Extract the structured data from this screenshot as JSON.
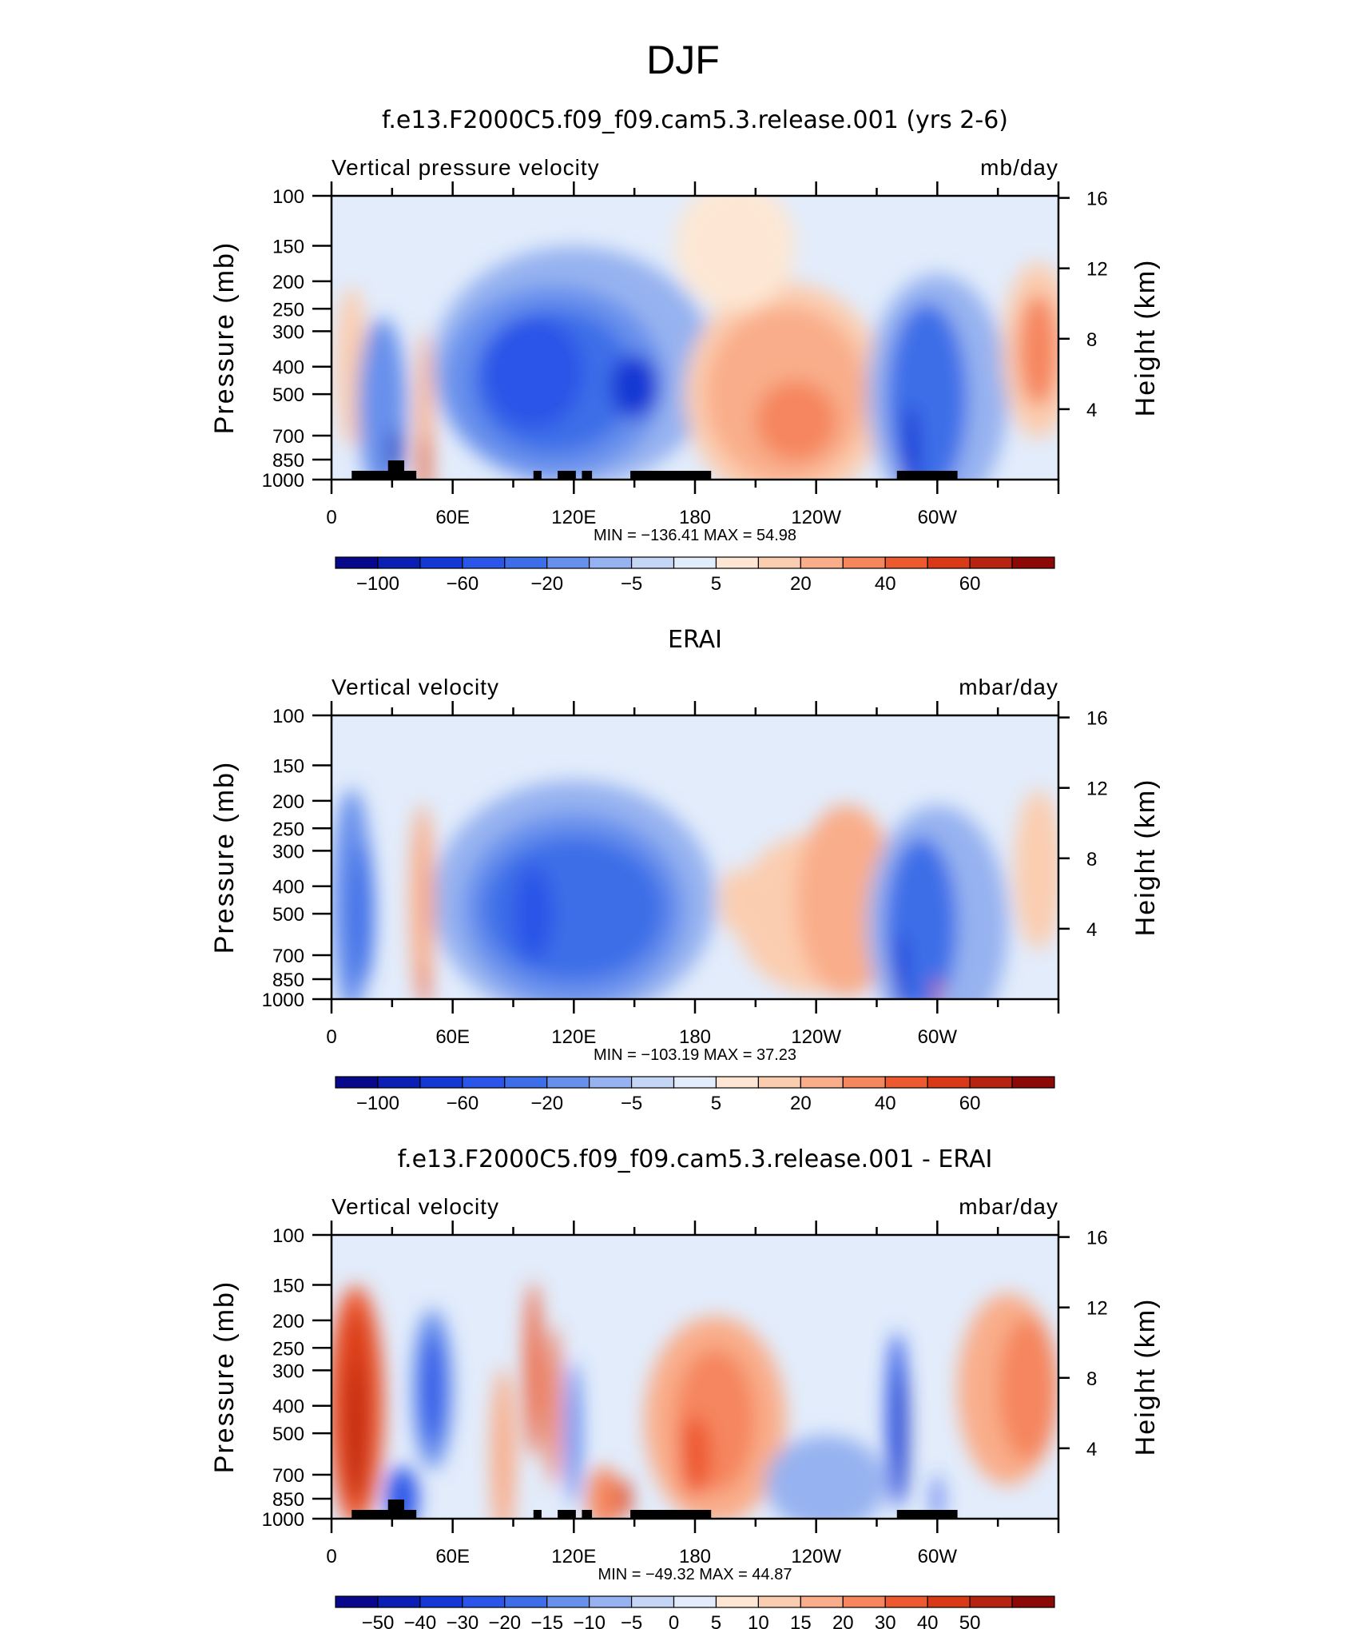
{
  "figure": {
    "title": "DJF"
  },
  "colors": {
    "scale": [
      "#08088c",
      "#0c1fb4",
      "#1537d4",
      "#2a55e8",
      "#3d6ee8",
      "#6790ec",
      "#96b2f0",
      "#c5d5f6",
      "#e2ecfb",
      "#fde7d4",
      "#fbcdb0",
      "#f9ad8a",
      "#f5865e",
      "#ee5a30",
      "#d83a18",
      "#b52410",
      "#8b0a08"
    ]
  },
  "chart_data": [
    {
      "type": "heatmap",
      "title": "f.e13.F2000C5.f09_f09.cam5.3.release.001 (yrs 2-6)",
      "variable_label": "Vertical pressure velocity",
      "units_label": "mb/day",
      "ylabel": "Pressure (mb)",
      "ylabel_right": "Height (km)",
      "y_ticks": [
        "100",
        "150",
        "200",
        "250",
        "300",
        "400",
        "500",
        "700",
        "850",
        "1000"
      ],
      "y_values": [
        100,
        150,
        200,
        250,
        300,
        400,
        500,
        700,
        850,
        1000
      ],
      "y_right_ticks": [
        "16",
        "12",
        "8",
        "4"
      ],
      "x_ticks": [
        "0",
        "60E",
        "120E",
        "180",
        "120W",
        "60W"
      ],
      "x_values": [
        0,
        60,
        120,
        180,
        240,
        300
      ],
      "xlim": [
        0,
        360
      ],
      "min_max_label": "MIN  =  −136.41    MAX  =    54.98",
      "colorbar_labels": [
        "−100",
        "−60",
        "−20",
        "−5",
        "5",
        "20",
        "40",
        "60"
      ],
      "topography": true
    },
    {
      "type": "heatmap",
      "title": "ERAI",
      "variable_label": "Vertical velocity",
      "units_label": "mbar/day",
      "ylabel": "Pressure (mb)",
      "ylabel_right": "Height (km)",
      "y_ticks": [
        "100",
        "150",
        "200",
        "250",
        "300",
        "400",
        "500",
        "700",
        "850",
        "1000"
      ],
      "y_values": [
        100,
        150,
        200,
        250,
        300,
        400,
        500,
        700,
        850,
        1000
      ],
      "y_right_ticks": [
        "16",
        "12",
        "8",
        "4"
      ],
      "x_ticks": [
        "0",
        "60E",
        "120E",
        "180",
        "120W",
        "60W"
      ],
      "x_values": [
        0,
        60,
        120,
        180,
        240,
        300
      ],
      "xlim": [
        0,
        360
      ],
      "min_max_label": "MIN  =  −103.19    MAX  =    37.23",
      "colorbar_labels": [
        "−100",
        "−60",
        "−20",
        "−5",
        "5",
        "20",
        "40",
        "60"
      ],
      "topography": false
    },
    {
      "type": "heatmap",
      "title": "f.e13.F2000C5.f09_f09.cam5.3.release.001 - ERAI",
      "variable_label": "Vertical velocity",
      "units_label": "mbar/day",
      "ylabel": "Pressure (mb)",
      "ylabel_right": "Height (km)",
      "y_ticks": [
        "100",
        "150",
        "200",
        "250",
        "300",
        "400",
        "500",
        "700",
        "850",
        "1000"
      ],
      "y_values": [
        100,
        150,
        200,
        250,
        300,
        400,
        500,
        700,
        850,
        1000
      ],
      "y_right_ticks": [
        "16",
        "12",
        "8",
        "4"
      ],
      "x_ticks": [
        "0",
        "60E",
        "120E",
        "180",
        "120W",
        "60W"
      ],
      "x_values": [
        0,
        60,
        120,
        180,
        240,
        300
      ],
      "xlim": [
        0,
        360
      ],
      "min_max_label": "MIN  =  −49.32    MAX  =    44.87",
      "colorbar_labels": [
        "−50",
        "−40",
        "−30",
        "−20",
        "−15",
        "−10",
        "−5",
        "0",
        "5",
        "10",
        "15",
        "20",
        "30",
        "40",
        "50"
      ],
      "topography": true
    }
  ]
}
